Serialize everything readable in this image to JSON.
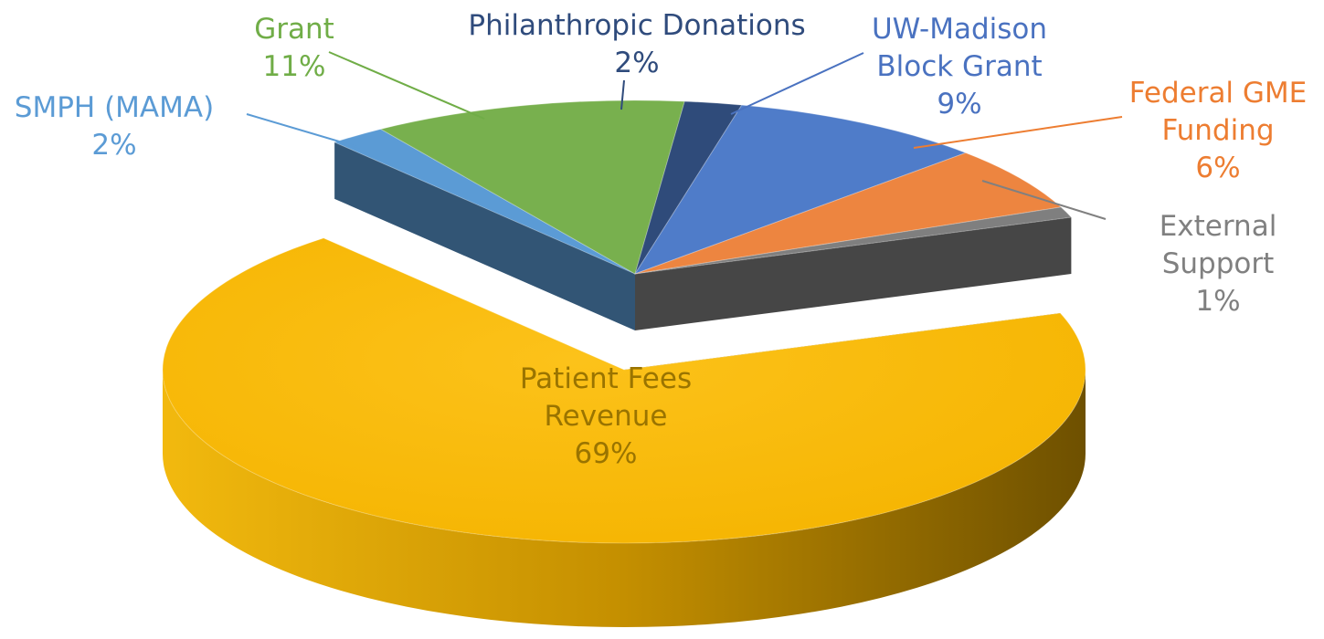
{
  "chart_data": {
    "type": "pie3d",
    "categories": [
      "SMPH (MAMA)",
      "Grant",
      "Philanthropic Donations",
      "UW-Madison Block Grant",
      "Federal GME Funding",
      "External Support",
      "Patient Fees Revenue"
    ],
    "values": [
      2,
      11,
      2,
      9,
      6,
      1,
      69
    ],
    "value_labels": [
      "2%",
      "11%",
      "2%",
      "9%",
      "6%",
      "1%",
      "69%"
    ],
    "colors": [
      "#5b9bd5",
      "#78b04e",
      "#2f4b7a",
      "#4f7cc9",
      "#ed8540",
      "#7f7f7f",
      "#fbbf12"
    ],
    "explode": [
      6
    ]
  }
}
